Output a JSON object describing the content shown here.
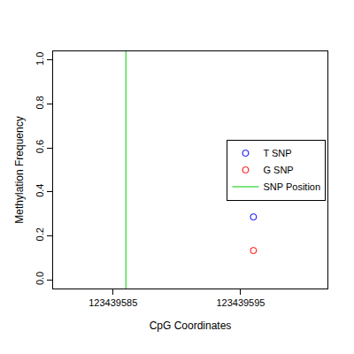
{
  "chart_data": {
    "type": "scatter",
    "x_label": "CpG Coordinates",
    "y_label": "Methylation Frequency",
    "xlim": [
      123439580.3,
      123439601.8
    ],
    "xticks": [
      123439585,
      123439595
    ],
    "ylim": [
      -0.04,
      1.04
    ],
    "yticks": [
      {
        "value": 0,
        "label": "0.0"
      },
      0.2,
      0.4,
      0.6,
      0.8,
      {
        "value": 1,
        "label": "1.0"
      }
    ],
    "grid": false,
    "legend": "right",
    "series": [
      {
        "name": "T SNP",
        "color": "#0000ff",
        "marker": "circle-open",
        "x": [
          123439596
        ],
        "values": [
          0.286
        ]
      },
      {
        "name": "G SNP",
        "color": "#ff0000",
        "marker": "circle-open",
        "x": [
          123439596
        ],
        "values": [
          0.133
        ]
      }
    ],
    "snp_position": {
      "name": "SNP Position",
      "color": "#00cc00",
      "x": 123439586,
      "line_style": "solid"
    }
  }
}
